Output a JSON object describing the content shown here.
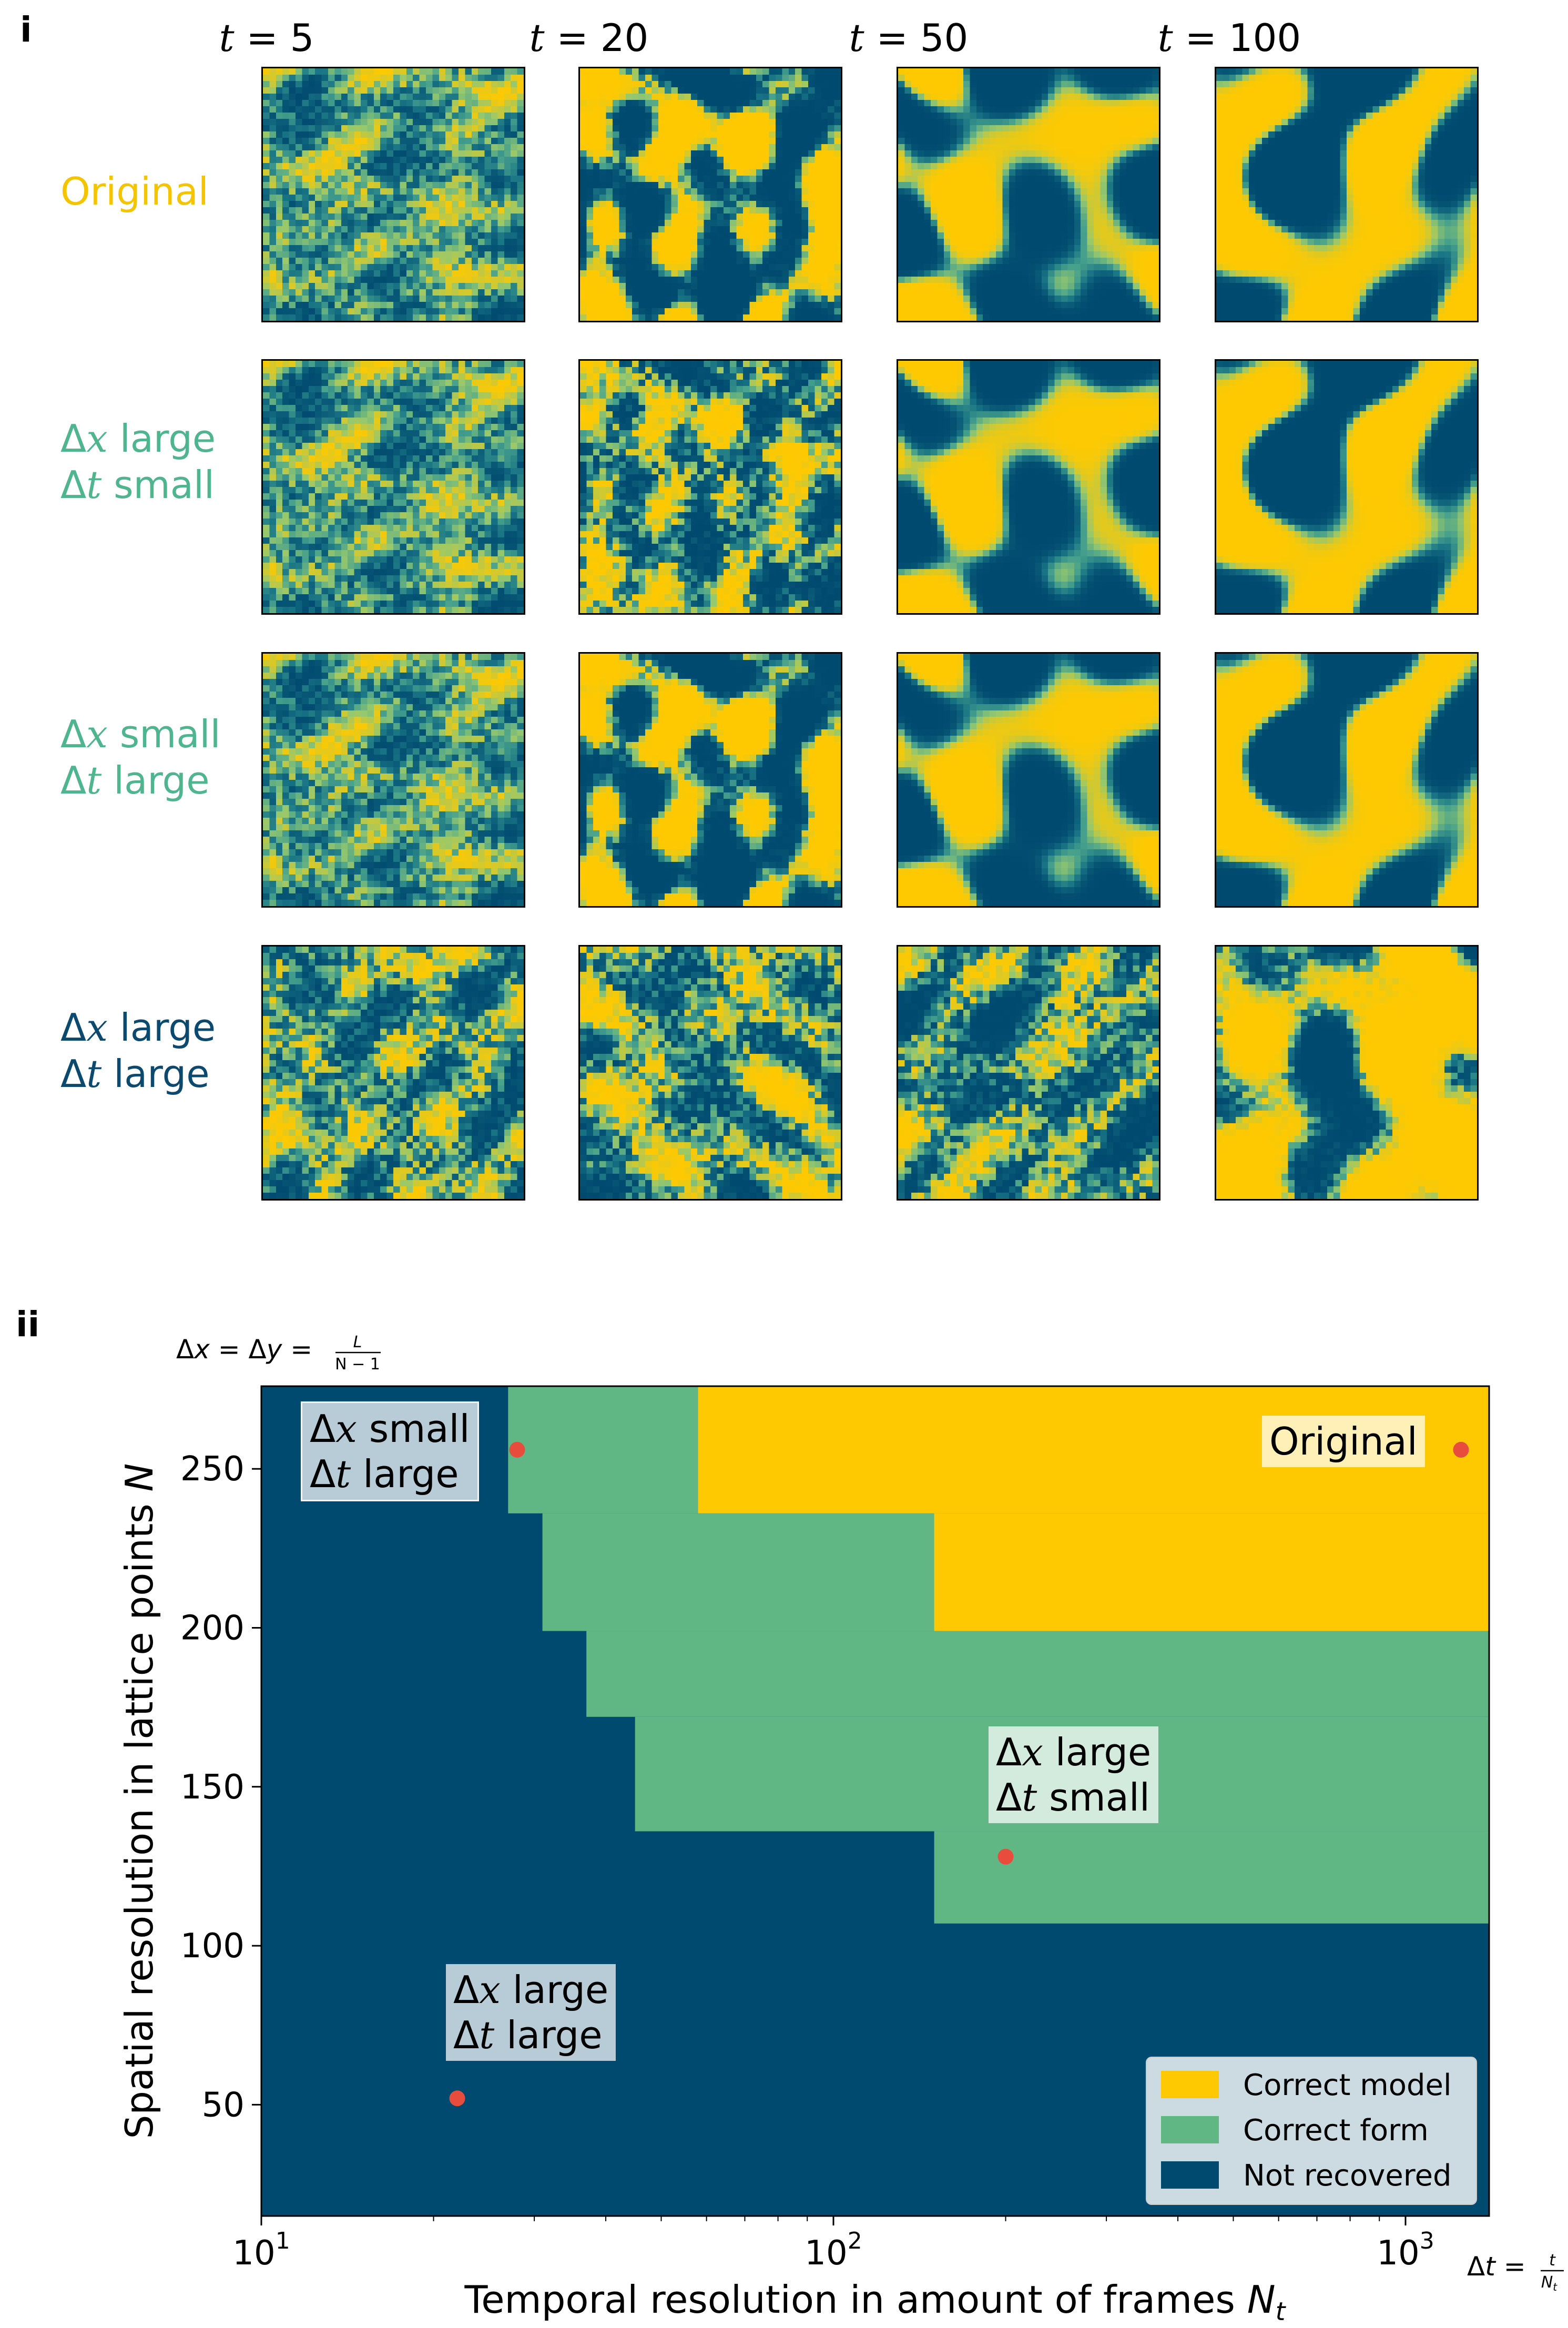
{
  "panel_i": {
    "label": "i",
    "columns": [
      {
        "var": "t",
        "eq": " = ",
        "value": "5"
      },
      {
        "var": "t",
        "eq": " = ",
        "value": "20"
      },
      {
        "var": "t",
        "eq": " = ",
        "value": "50"
      },
      {
        "var": "t",
        "eq": " = ",
        "value": "100"
      }
    ],
    "rows": [
      {
        "line1": "Original",
        "line2": "",
        "color": "#f5c400"
      },
      {
        "line1_sym": "Δ",
        "line1_var": "x",
        "line1_rest": " large",
        "line2_sym": "Δ",
        "line2_var": "t",
        "line2_rest": " small",
        "color": "#4fb58f"
      },
      {
        "line1_sym": "Δ",
        "line1_var": "x",
        "line1_rest": " small",
        "line2_sym": "Δ",
        "line2_var": "t",
        "line2_rest": " large",
        "color": "#4fb58f"
      },
      {
        "line1_sym": "Δ",
        "line1_var": "x",
        "line1_rest": " large",
        "line2_sym": "Δ",
        "line2_var": "t",
        "line2_rest": " large",
        "color": "#0b4a6e"
      }
    ]
  },
  "panel_ii": {
    "label": "ii",
    "dx_formula": "Δx = Δy = L/(N − 1)",
    "dx_pre": "Δ",
    "dx_x": "x",
    "dx_mid": " = Δ",
    "dx_y": "y",
    "dx_eq": " = ",
    "dx_num": "L",
    "dx_den": "N − 1",
    "dt_pre": "Δ",
    "dt_t": "t",
    "dt_eq": " = ",
    "dt_num": "t",
    "dt_den": "N",
    "dt_den_sub": "t"
  },
  "colors": {
    "correct_model": "#fec901",
    "correct_form": "#61b784",
    "not_recovered": "#004a6f",
    "marker": "#e84c3d"
  },
  "chart_data": {
    "type": "heatmap",
    "xlabel": "Temporal resolution in amount of frames N_t",
    "ylabel": "Spatial resolution in lattice points N",
    "xscale": "log",
    "xlim": [
      10,
      1400
    ],
    "ylim": [
      15,
      276
    ],
    "xticks": [
      {
        "value": 10,
        "base": "10",
        "exp": "1"
      },
      {
        "value": 100,
        "base": "10",
        "exp": "2"
      },
      {
        "value": 1000,
        "base": "10",
        "exp": "3"
      }
    ],
    "yticks": [
      50,
      100,
      150,
      200,
      250
    ],
    "regions": [
      {
        "class": "correct_form",
        "x0": 27,
        "x1": 1400,
        "y0": 236,
        "y1": 276
      },
      {
        "class": "correct_model",
        "x0": 58,
        "x1": 1400,
        "y0": 236,
        "y1": 276
      },
      {
        "class": "correct_form",
        "x0": 31,
        "x1": 1400,
        "y0": 199,
        "y1": 236
      },
      {
        "class": "correct_model",
        "x0": 150,
        "x1": 1400,
        "y0": 199,
        "y1": 236
      },
      {
        "class": "correct_form",
        "x0": 37,
        "x1": 1400,
        "y0": 172,
        "y1": 199
      },
      {
        "class": "correct_form",
        "x0": 45,
        "x1": 1400,
        "y0": 136,
        "y1": 172
      },
      {
        "class": "correct_form",
        "x0": 150,
        "x1": 1400,
        "y0": 107,
        "y1": 136
      }
    ],
    "points": [
      {
        "name": "original",
        "x": 1250,
        "y": 256
      },
      {
        "name": "dx-small-dt-large",
        "x": 28,
        "y": 256
      },
      {
        "name": "dx-large-dt-small",
        "x": 200,
        "y": 128
      },
      {
        "name": "dx-large-dt-large",
        "x": 22,
        "y": 52
      }
    ],
    "annotations": [
      {
        "name": "original",
        "line1": "Original",
        "line2": ""
      },
      {
        "name": "dx-small-dt-large",
        "line1_var": "x",
        "line1_rest": " small",
        "line2_var": "t",
        "line2_rest": " large"
      },
      {
        "name": "dx-large-dt-small",
        "line1_var": "x",
        "line1_rest": " large",
        "line2_var": "t",
        "line2_rest": " small"
      },
      {
        "name": "dx-large-dt-large",
        "line1_var": "x",
        "line1_rest": " large",
        "line2_var": "t",
        "line2_rest": " large"
      }
    ],
    "legend": {
      "placement": "lower-right",
      "entries": [
        {
          "label": "Correct model",
          "class": "correct_model"
        },
        {
          "label": "Correct form",
          "class": "correct_form"
        },
        {
          "label": "Not recovered",
          "class": "not_recovered"
        }
      ]
    }
  }
}
